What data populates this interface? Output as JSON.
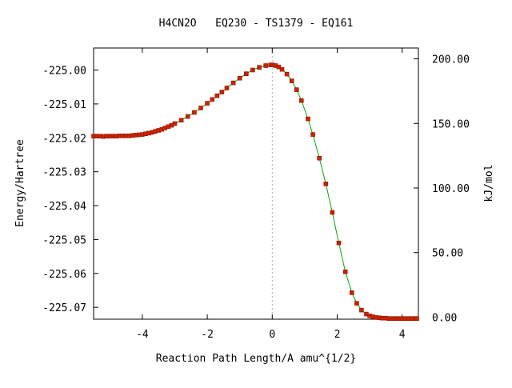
{
  "chart_data": {
    "type": "line",
    "title": "H4CN2O   EQ230 - TS1379 - EQ161",
    "xlabel": "Reaction Path Length/A amu^{1/2}",
    "ylabel": "Energy/Hartree",
    "y2label": "kJ/mol",
    "xlim": [
      -5.5,
      4.5
    ],
    "ylim": [
      -225.0735,
      -224.9935
    ],
    "y2lim": [
      -1.6,
      208.4
    ],
    "x_ticks": [
      -4,
      -2,
      0,
      2,
      4
    ],
    "x_tick_labels": [
      "-4",
      "-2",
      "0",
      "2",
      "4"
    ],
    "y_ticks": [
      -225.0,
      -225.01,
      -225.02,
      -225.03,
      -225.04,
      -225.05,
      -225.06,
      -225.07
    ],
    "y_tick_labels": [
      "-225.00",
      "-225.01",
      "-225.02",
      "-225.03",
      "-225.04",
      "-225.05",
      "-225.06",
      "-225.07"
    ],
    "y2_ticks": [
      0,
      50,
      100,
      150,
      200
    ],
    "y2_tick_labels": [
      "0.00",
      "50.00",
      "100.00",
      "150.00",
      "200.00"
    ],
    "ts_marker_x": 0,
    "grid": false,
    "line_color": "#00aa00",
    "marker_color": "#cc2200",
    "ts_line_color": "#aaaaaa",
    "series": [
      {
        "x": [
          -5.5,
          -5.4,
          -5.3,
          -5.2,
          -5.1,
          -5.0,
          -4.9,
          -4.8,
          -4.7,
          -4.6,
          -4.5,
          -4.4,
          -4.3,
          -4.2,
          -4.1,
          -4.0,
          -3.9,
          -3.8,
          -3.7,
          -3.6,
          -3.5,
          -3.4,
          -3.3,
          -3.2,
          -3.1,
          -3.0,
          -2.8,
          -2.6,
          -2.4,
          -2.2,
          -2.0,
          -1.85,
          -1.7,
          -1.55,
          -1.4,
          -1.2,
          -1.0,
          -0.8,
          -0.6,
          -0.4,
          -0.2,
          -0.05,
          0.0,
          0.1,
          0.2,
          0.3,
          0.45,
          0.6,
          0.75,
          0.9,
          1.1,
          1.25,
          1.45,
          1.65,
          1.85,
          2.05,
          2.25,
          2.45,
          2.6,
          2.75,
          2.9,
          3.0,
          3.1,
          3.2,
          3.3,
          3.4,
          3.5,
          3.6,
          3.7,
          3.8,
          3.9,
          4.0,
          4.1,
          4.2,
          4.3,
          4.4,
          4.45
        ],
        "y": [
          -225.0195,
          -225.0195,
          -225.0195,
          -225.0196,
          -225.0195,
          -225.0195,
          -225.0195,
          -225.0195,
          -225.0194,
          -225.0194,
          -225.0194,
          -225.0194,
          -225.0193,
          -225.0192,
          -225.0191,
          -225.019,
          -225.0188,
          -225.0186,
          -225.0184,
          -225.0181,
          -225.0178,
          -225.0175,
          -225.0171,
          -225.0167,
          -225.0163,
          -225.0158,
          -225.0148,
          -225.0137,
          -225.0125,
          -225.0112,
          -225.0098,
          -225.0087,
          -225.0076,
          -225.0065,
          -225.0053,
          -225.0038,
          -225.0024,
          -225.0011,
          -225.0,
          -224.9992,
          -224.9987,
          -224.9985,
          -224.9985,
          -224.9987,
          -224.9991,
          -224.9998,
          -225.0012,
          -225.0032,
          -225.0058,
          -225.009,
          -225.0144,
          -225.019,
          -225.026,
          -225.0336,
          -225.042,
          -225.051,
          -225.0595,
          -225.0657,
          -225.0688,
          -225.0708,
          -225.072,
          -225.0725,
          -225.0728,
          -225.073,
          -225.0731,
          -225.0732,
          -225.0732,
          -225.0733,
          -225.0733,
          -225.0733,
          -225.0733,
          -225.0733,
          -225.0733,
          -225.0733,
          -225.0733,
          -225.0733,
          -225.0733
        ]
      }
    ]
  }
}
